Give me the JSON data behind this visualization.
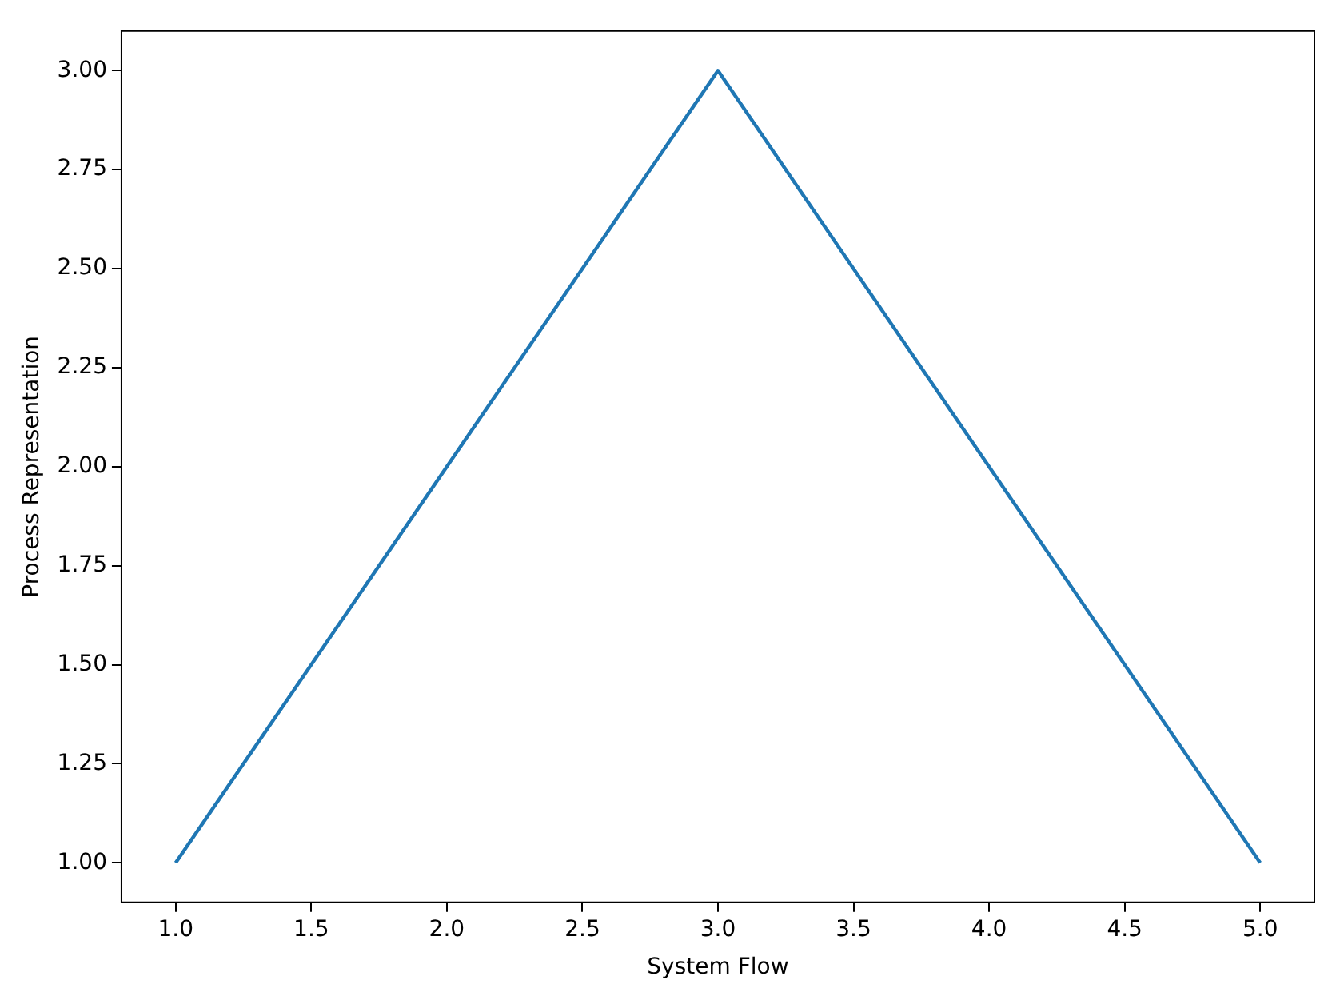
{
  "chart_data": {
    "type": "line",
    "xlabel": "System Flow",
    "ylabel": "Process Representation",
    "x": [
      1,
      2,
      3,
      4,
      5
    ],
    "series": [
      {
        "color": "#1f77b4",
        "values": [
          1,
          2,
          3,
          2,
          1
        ]
      }
    ],
    "xlim": [
      0.8,
      5.2
    ],
    "ylim": [
      0.9,
      3.1
    ],
    "xticks": [
      {
        "value": 1,
        "label": "1.0"
      },
      {
        "value": 1.5,
        "label": "1.5"
      },
      {
        "value": 2,
        "label": "2.0"
      },
      {
        "value": 2.5,
        "label": "2.5"
      },
      {
        "value": 3,
        "label": "3.0"
      },
      {
        "value": 3.5,
        "label": "3.5"
      },
      {
        "value": 4,
        "label": "4.0"
      },
      {
        "value": 4.5,
        "label": "4.5"
      },
      {
        "value": 5,
        "label": "5.0"
      }
    ],
    "yticks": [
      {
        "value": 1,
        "label": "1.00"
      },
      {
        "value": 1.25,
        "label": "1.25"
      },
      {
        "value": 1.5,
        "label": "1.50"
      },
      {
        "value": 1.75,
        "label": "1.75"
      },
      {
        "value": 2,
        "label": "2.00"
      },
      {
        "value": 2.25,
        "label": "2.25"
      },
      {
        "value": 2.5,
        "label": "2.50"
      },
      {
        "value": 2.75,
        "label": "2.75"
      },
      {
        "value": 3,
        "label": "3.00"
      }
    ],
    "grid": false,
    "legend": false,
    "marker": "none",
    "line_style": "solid"
  }
}
